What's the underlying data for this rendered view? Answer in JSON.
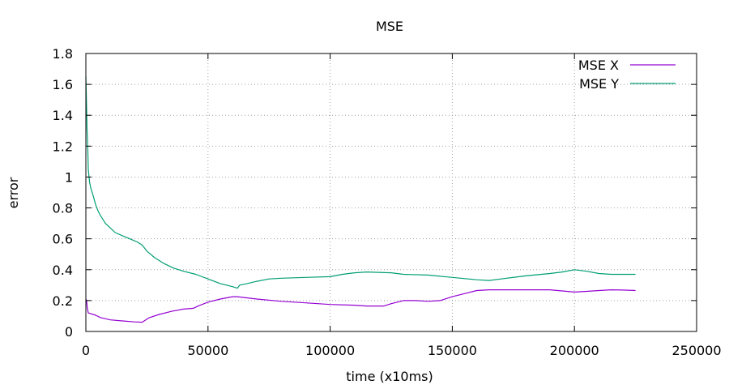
{
  "chart_data": {
    "type": "line",
    "title": "MSE",
    "xlabel": "time (x10ms)",
    "ylabel": "error",
    "xlim": [
      0,
      250000
    ],
    "ylim": [
      0,
      1.8
    ],
    "xticks": [
      0,
      50000,
      100000,
      150000,
      200000,
      250000
    ],
    "xtick_labels": [
      "0",
      "50000",
      "100000",
      "150000",
      "200000",
      "250000"
    ],
    "yticks": [
      0,
      0.2,
      0.4,
      0.6,
      0.8,
      1,
      1.2,
      1.4,
      1.6,
      1.8
    ],
    "ytick_labels": [
      "0",
      "0.2",
      "0.4",
      "0.6",
      "0.8",
      "1",
      "1.2",
      "1.4",
      "1.6",
      "1.8"
    ],
    "grid": true,
    "legend_position": "top-right",
    "series": [
      {
        "name": "MSE X",
        "color": "#9400d3",
        "points": [
          [
            0,
            0.21
          ],
          [
            300,
            0.2
          ],
          [
            600,
            0.15
          ],
          [
            1000,
            0.12
          ],
          [
            2000,
            0.115
          ],
          [
            4000,
            0.105
          ],
          [
            6000,
            0.09
          ],
          [
            10000,
            0.075
          ],
          [
            15000,
            0.068
          ],
          [
            20000,
            0.062
          ],
          [
            23000,
            0.06
          ],
          [
            24000,
            0.07
          ],
          [
            26000,
            0.09
          ],
          [
            30000,
            0.11
          ],
          [
            35000,
            0.13
          ],
          [
            40000,
            0.145
          ],
          [
            44000,
            0.15
          ],
          [
            46000,
            0.165
          ],
          [
            50000,
            0.19
          ],
          [
            55000,
            0.21
          ],
          [
            60000,
            0.225
          ],
          [
            62000,
            0.225
          ],
          [
            70000,
            0.21
          ],
          [
            80000,
            0.195
          ],
          [
            90000,
            0.185
          ],
          [
            100000,
            0.175
          ],
          [
            110000,
            0.17
          ],
          [
            115000,
            0.165
          ],
          [
            122000,
            0.165
          ],
          [
            125000,
            0.18
          ],
          [
            130000,
            0.2
          ],
          [
            135000,
            0.2
          ],
          [
            140000,
            0.195
          ],
          [
            145000,
            0.2
          ],
          [
            150000,
            0.225
          ],
          [
            155000,
            0.245
          ],
          [
            160000,
            0.265
          ],
          [
            165000,
            0.27
          ],
          [
            175000,
            0.27
          ],
          [
            190000,
            0.27
          ],
          [
            200000,
            0.255
          ],
          [
            205000,
            0.26
          ],
          [
            210000,
            0.265
          ],
          [
            215000,
            0.27
          ],
          [
            220000,
            0.268
          ],
          [
            225000,
            0.265
          ]
        ]
      },
      {
        "name": "MSE Y",
        "color": "#009e73",
        "points": [
          [
            0,
            1.65
          ],
          [
            200,
            1.52
          ],
          [
            500,
            1.3
          ],
          [
            800,
            1.18
          ],
          [
            1000,
            1.05
          ],
          [
            1500,
            0.97
          ],
          [
            2000,
            0.93
          ],
          [
            3000,
            0.88
          ],
          [
            4000,
            0.82
          ],
          [
            5000,
            0.78
          ],
          [
            6000,
            0.75
          ],
          [
            8000,
            0.7
          ],
          [
            10000,
            0.67
          ],
          [
            12000,
            0.64
          ],
          [
            15000,
            0.62
          ],
          [
            18000,
            0.6
          ],
          [
            21000,
            0.58
          ],
          [
            23000,
            0.56
          ],
          [
            25000,
            0.52
          ],
          [
            28000,
            0.48
          ],
          [
            32000,
            0.44
          ],
          [
            36000,
            0.41
          ],
          [
            40000,
            0.39
          ],
          [
            45000,
            0.37
          ],
          [
            50000,
            0.34
          ],
          [
            55000,
            0.31
          ],
          [
            60000,
            0.29
          ],
          [
            62000,
            0.28
          ],
          [
            63000,
            0.3
          ],
          [
            66000,
            0.31
          ],
          [
            70000,
            0.325
          ],
          [
            75000,
            0.34
          ],
          [
            80000,
            0.345
          ],
          [
            90000,
            0.35
          ],
          [
            100000,
            0.355
          ],
          [
            105000,
            0.37
          ],
          [
            110000,
            0.38
          ],
          [
            115000,
            0.385
          ],
          [
            125000,
            0.38
          ],
          [
            130000,
            0.37
          ],
          [
            140000,
            0.365
          ],
          [
            150000,
            0.35
          ],
          [
            160000,
            0.335
          ],
          [
            165000,
            0.33
          ],
          [
            170000,
            0.34
          ],
          [
            180000,
            0.36
          ],
          [
            190000,
            0.375
          ],
          [
            195000,
            0.385
          ],
          [
            200000,
            0.4
          ],
          [
            205000,
            0.39
          ],
          [
            210000,
            0.375
          ],
          [
            215000,
            0.37
          ],
          [
            225000,
            0.37
          ]
        ]
      }
    ]
  }
}
